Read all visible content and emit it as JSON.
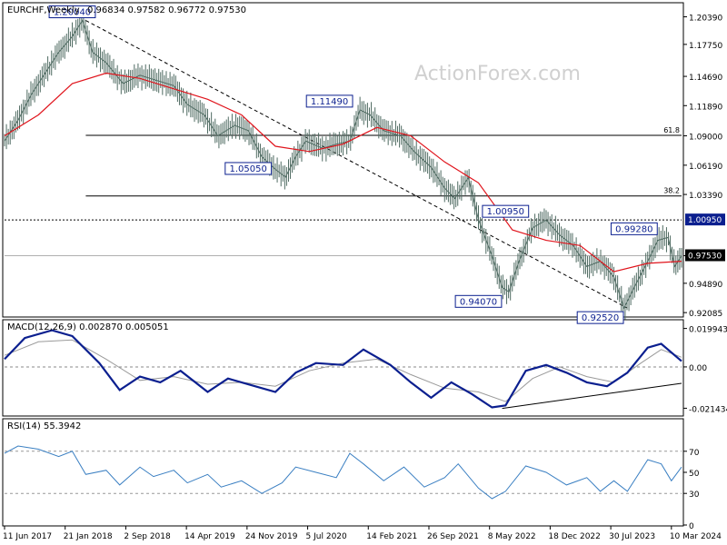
{
  "chart_data": {
    "type": "candlestick",
    "symbol_label": "EURCHF,Weekly",
    "ohlc_label": "0.96834 0.97582 0.96772 0.97530",
    "watermark": "ActionForex.com",
    "price_axis": {
      "range": [
        0.9175,
        1.2165
      ],
      "ticks": [
        "1.20390",
        "1.17750",
        "1.14690",
        "1.11890",
        "1.09000",
        "1.06190",
        "1.03390",
        "0.97530",
        "0.94890",
        "0.92085"
      ],
      "tick_values": [
        1.2039,
        1.1775,
        1.1469,
        1.1189,
        1.09,
        1.0619,
        1.0339,
        0.9753,
        0.9489,
        0.92085
      ]
    },
    "price_series": [
      {
        "t": 0,
        "p": 1.085
      },
      {
        "t": 0.02,
        "p": 1.105
      },
      {
        "t": 0.04,
        "p": 1.13
      },
      {
        "t": 0.06,
        "p": 1.15
      },
      {
        "t": 0.08,
        "p": 1.17
      },
      {
        "t": 0.1,
        "p": 1.185
      },
      {
        "t": 0.115,
        "p": 1.2004
      },
      {
        "t": 0.13,
        "p": 1.17
      },
      {
        "t": 0.15,
        "p": 1.16
      },
      {
        "t": 0.175,
        "p": 1.14
      },
      {
        "t": 0.2,
        "p": 1.148
      },
      {
        "t": 0.225,
        "p": 1.143
      },
      {
        "t": 0.25,
        "p": 1.138
      },
      {
        "t": 0.27,
        "p": 1.12
      },
      {
        "t": 0.295,
        "p": 1.11
      },
      {
        "t": 0.315,
        "p": 1.09
      },
      {
        "t": 0.34,
        "p": 1.1
      },
      {
        "t": 0.36,
        "p": 1.095
      },
      {
        "t": 0.38,
        "p": 1.07
      },
      {
        "t": 0.4,
        "p": 1.058
      },
      {
        "t": 0.415,
        "p": 1.0505
      },
      {
        "t": 0.43,
        "p": 1.07
      },
      {
        "t": 0.445,
        "p": 1.085
      },
      {
        "t": 0.47,
        "p": 1.078
      },
      {
        "t": 0.49,
        "p": 1.082
      },
      {
        "t": 0.51,
        "p": 1.085
      },
      {
        "t": 0.525,
        "p": 1.1149
      },
      {
        "t": 0.54,
        "p": 1.11
      },
      {
        "t": 0.56,
        "p": 1.095
      },
      {
        "t": 0.585,
        "p": 1.09
      },
      {
        "t": 0.605,
        "p": 1.075
      },
      {
        "t": 0.63,
        "p": 1.06
      },
      {
        "t": 0.65,
        "p": 1.04
      },
      {
        "t": 0.665,
        "p": 1.03
      },
      {
        "t": 0.685,
        "p": 1.05
      },
      {
        "t": 0.7,
        "p": 1.01
      },
      {
        "t": 0.72,
        "p": 0.975
      },
      {
        "t": 0.735,
        "p": 0.945
      },
      {
        "t": 0.745,
        "p": 0.9407
      },
      {
        "t": 0.76,
        "p": 0.97
      },
      {
        "t": 0.78,
        "p": 1.002
      },
      {
        "t": 0.8,
        "p": 1.0095
      },
      {
        "t": 0.82,
        "p": 0.995
      },
      {
        "t": 0.84,
        "p": 0.985
      },
      {
        "t": 0.86,
        "p": 0.965
      },
      {
        "t": 0.88,
        "p": 0.97
      },
      {
        "t": 0.9,
        "p": 0.955
      },
      {
        "t": 0.915,
        "p": 0.9252
      },
      {
        "t": 0.93,
        "p": 0.945
      },
      {
        "t": 0.95,
        "p": 0.97
      },
      {
        "t": 0.965,
        "p": 0.99
      },
      {
        "t": 0.98,
        "p": 0.9928
      },
      {
        "t": 0.99,
        "p": 0.965
      },
      {
        "t": 1,
        "p": 0.9753
      }
    ],
    "ma_series": [
      {
        "t": 0,
        "p": 1.09
      },
      {
        "t": 0.05,
        "p": 1.11
      },
      {
        "t": 0.1,
        "p": 1.14
      },
      {
        "t": 0.15,
        "p": 1.15
      },
      {
        "t": 0.2,
        "p": 1.145
      },
      {
        "t": 0.25,
        "p": 1.135
      },
      {
        "t": 0.3,
        "p": 1.125
      },
      {
        "t": 0.35,
        "p": 1.11
      },
      {
        "t": 0.4,
        "p": 1.08
      },
      {
        "t": 0.45,
        "p": 1.075
      },
      {
        "t": 0.5,
        "p": 1.082
      },
      {
        "t": 0.55,
        "p": 1.098
      },
      {
        "t": 0.6,
        "p": 1.09
      },
      {
        "t": 0.65,
        "p": 1.065
      },
      {
        "t": 0.7,
        "p": 1.045
      },
      {
        "t": 0.75,
        "p": 1.0
      },
      {
        "t": 0.8,
        "p": 0.99
      },
      {
        "t": 0.85,
        "p": 0.985
      },
      {
        "t": 0.9,
        "p": 0.96
      },
      {
        "t": 0.95,
        "p": 0.968
      },
      {
        "t": 1,
        "p": 0.97
      }
    ],
    "levels": [
      {
        "label": "61.8",
        "price": 1.0905,
        "style": "solid"
      },
      {
        "label": "38.2",
        "price": 1.0325,
        "style": "solid"
      },
      {
        "label": "",
        "price": 1.0095,
        "style": "dotted"
      },
      {
        "label": "",
        "price": 0.9753,
        "style": "solid-light"
      }
    ],
    "level_boxes": [
      {
        "text": "1.00950",
        "price": 1.0095,
        "color": "#0b1f8f"
      },
      {
        "text": "0.97530",
        "price": 0.9753,
        "color": "#000000"
      }
    ],
    "annotations": [
      {
        "text": "1.20040",
        "t": 0.1,
        "price": 1.2004
      },
      {
        "text": "1.05050",
        "t": 0.36,
        "price": 1.0505
      },
      {
        "text": "1.11490",
        "t": 0.48,
        "price": 1.1149
      },
      {
        "text": "1.00950",
        "t": 0.74,
        "price": 1.0095
      },
      {
        "text": "0.94070",
        "t": 0.7,
        "price": 0.9407
      },
      {
        "text": "0.92520",
        "t": 0.88,
        "price": 0.9252
      },
      {
        "text": "0.99280",
        "t": 0.93,
        "price": 0.9928
      }
    ],
    "trendlines": [
      {
        "pane": "price",
        "t1": 0.12,
        "v1": 1.2004,
        "t2": 0.92,
        "v2": 0.9252,
        "style": "dashed"
      },
      {
        "pane": "macd",
        "t1": 0.735,
        "v1": -0.0215,
        "t2": 1.0,
        "v2": -0.0085,
        "style": "solid"
      }
    ],
    "macd": {
      "label": "MACD(12,26,9) 0.002870 0.005051",
      "range": [
        -0.025,
        0.024
      ],
      "ticks": [
        "0.019943",
        "0.00",
        "-0.021434"
      ],
      "tick_values": [
        0.019943,
        0,
        -0.021434
      ],
      "macd_series": [
        {
          "t": 0,
          "v": 0.004
        },
        {
          "t": 0.03,
          "v": 0.015
        },
        {
          "t": 0.07,
          "v": 0.019
        },
        {
          "t": 0.1,
          "v": 0.016
        },
        {
          "t": 0.14,
          "v": 0.002
        },
        {
          "t": 0.17,
          "v": -0.012
        },
        {
          "t": 0.2,
          "v": -0.005
        },
        {
          "t": 0.23,
          "v": -0.008
        },
        {
          "t": 0.26,
          "v": -0.002
        },
        {
          "t": 0.3,
          "v": -0.013
        },
        {
          "t": 0.33,
          "v": -0.006
        },
        {
          "t": 0.37,
          "v": -0.01
        },
        {
          "t": 0.4,
          "v": -0.013
        },
        {
          "t": 0.43,
          "v": -0.003
        },
        {
          "t": 0.46,
          "v": 0.002
        },
        {
          "t": 0.5,
          "v": 0.001
        },
        {
          "t": 0.53,
          "v": 0.009
        },
        {
          "t": 0.57,
          "v": 0.001
        },
        {
          "t": 0.6,
          "v": -0.008
        },
        {
          "t": 0.63,
          "v": -0.016
        },
        {
          "t": 0.66,
          "v": -0.008
        },
        {
          "t": 0.69,
          "v": -0.014
        },
        {
          "t": 0.72,
          "v": -0.021
        },
        {
          "t": 0.74,
          "v": -0.02
        },
        {
          "t": 0.77,
          "v": -0.002
        },
        {
          "t": 0.8,
          "v": 0.001
        },
        {
          "t": 0.83,
          "v": -0.003
        },
        {
          "t": 0.86,
          "v": -0.008
        },
        {
          "t": 0.89,
          "v": -0.01
        },
        {
          "t": 0.92,
          "v": -0.003
        },
        {
          "t": 0.95,
          "v": 0.01
        },
        {
          "t": 0.97,
          "v": 0.012
        },
        {
          "t": 1,
          "v": 0.003
        }
      ],
      "signal_series": [
        {
          "t": 0,
          "v": 0.006
        },
        {
          "t": 0.05,
          "v": 0.013
        },
        {
          "t": 0.1,
          "v": 0.014
        },
        {
          "t": 0.15,
          "v": 0.004
        },
        {
          "t": 0.2,
          "v": -0.007
        },
        {
          "t": 0.25,
          "v": -0.005
        },
        {
          "t": 0.3,
          "v": -0.009
        },
        {
          "t": 0.35,
          "v": -0.008
        },
        {
          "t": 0.4,
          "v": -0.01
        },
        {
          "t": 0.45,
          "v": -0.002
        },
        {
          "t": 0.5,
          "v": 0.002
        },
        {
          "t": 0.55,
          "v": 0.004
        },
        {
          "t": 0.6,
          "v": -0.004
        },
        {
          "t": 0.65,
          "v": -0.011
        },
        {
          "t": 0.7,
          "v": -0.013
        },
        {
          "t": 0.74,
          "v": -0.018
        },
        {
          "t": 0.78,
          "v": -0.006
        },
        {
          "t": 0.82,
          "v": 0.0
        },
        {
          "t": 0.86,
          "v": -0.005
        },
        {
          "t": 0.9,
          "v": -0.008
        },
        {
          "t": 0.94,
          "v": 0.002
        },
        {
          "t": 0.97,
          "v": 0.009
        },
        {
          "t": 1,
          "v": 0.005
        }
      ]
    },
    "rsi": {
      "label": "RSI(14) 55.3942",
      "range": [
        0,
        100
      ],
      "ticks": [
        "70",
        "50",
        "30",
        "0"
      ],
      "tick_values": [
        70,
        50,
        30,
        0
      ],
      "levels": [
        70,
        30
      ],
      "series": [
        {
          "t": 0,
          "v": 68
        },
        {
          "t": 0.02,
          "v": 75
        },
        {
          "t": 0.05,
          "v": 72
        },
        {
          "t": 0.08,
          "v": 65
        },
        {
          "t": 0.1,
          "v": 70
        },
        {
          "t": 0.12,
          "v": 48
        },
        {
          "t": 0.15,
          "v": 52
        },
        {
          "t": 0.17,
          "v": 38
        },
        {
          "t": 0.2,
          "v": 55
        },
        {
          "t": 0.22,
          "v": 46
        },
        {
          "t": 0.25,
          "v": 52
        },
        {
          "t": 0.27,
          "v": 40
        },
        {
          "t": 0.3,
          "v": 48
        },
        {
          "t": 0.32,
          "v": 36
        },
        {
          "t": 0.35,
          "v": 42
        },
        {
          "t": 0.38,
          "v": 30
        },
        {
          "t": 0.41,
          "v": 40
        },
        {
          "t": 0.43,
          "v": 55
        },
        {
          "t": 0.46,
          "v": 50
        },
        {
          "t": 0.49,
          "v": 45
        },
        {
          "t": 0.51,
          "v": 68
        },
        {
          "t": 0.53,
          "v": 58
        },
        {
          "t": 0.56,
          "v": 42
        },
        {
          "t": 0.59,
          "v": 55
        },
        {
          "t": 0.62,
          "v": 36
        },
        {
          "t": 0.65,
          "v": 45
        },
        {
          "t": 0.67,
          "v": 58
        },
        {
          "t": 0.7,
          "v": 35
        },
        {
          "t": 0.72,
          "v": 25
        },
        {
          "t": 0.74,
          "v": 32
        },
        {
          "t": 0.77,
          "v": 56
        },
        {
          "t": 0.8,
          "v": 50
        },
        {
          "t": 0.83,
          "v": 38
        },
        {
          "t": 0.86,
          "v": 45
        },
        {
          "t": 0.88,
          "v": 32
        },
        {
          "t": 0.9,
          "v": 42
        },
        {
          "t": 0.92,
          "v": 32
        },
        {
          "t": 0.95,
          "v": 62
        },
        {
          "t": 0.97,
          "v": 58
        },
        {
          "t": 0.985,
          "v": 42
        },
        {
          "t": 1,
          "v": 55
        }
      ]
    },
    "x_ticks": [
      "11 Jun 2017",
      "21 Jan 2018",
      "2 Sep 2018",
      "14 Apr 2019",
      "24 Nov 2019",
      "5 Jul 2020",
      "14 Feb 2021",
      "26 Sep 2021",
      "8 May 2022",
      "18 Dec 2022",
      "30 Jul 2023",
      "10 Mar 2024"
    ],
    "colors": {
      "price": "#4f6b62",
      "ma": "#e0141c",
      "macd": "#0b1f8f",
      "signal": "#9a9a9a",
      "rsi": "#3a7fc2",
      "box_border": "#0b1f8f"
    }
  }
}
